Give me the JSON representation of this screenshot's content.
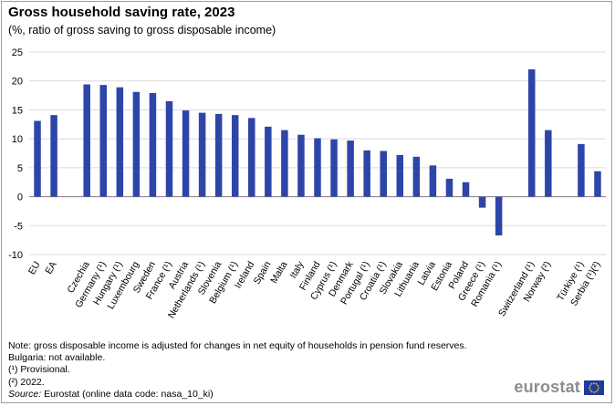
{
  "header": {
    "title": "Gross household saving rate, 2023",
    "subtitle": "(%, ratio of gross saving to gross disposable income)"
  },
  "chart_data": {
    "type": "bar",
    "title": "Gross household saving rate, 2023",
    "subtitle": "(%, ratio of gross saving to gross disposable income)",
    "xlabel": "",
    "ylabel": "",
    "ylim": [
      -10,
      25
    ],
    "yticks": [
      -10,
      -5,
      0,
      5,
      10,
      15,
      20,
      25
    ],
    "grid": true,
    "color": "#2e45a8",
    "categories": [
      "EU",
      "EA",
      "Czechia",
      "Germany (¹)",
      "Hungary (¹)",
      "Luxembourg",
      "Sweden",
      "France (¹)",
      "Austria",
      "Netherlands (¹)",
      "Slovenia",
      "Belgium (¹)",
      "Ireland",
      "Spain",
      "Malta",
      "Italy",
      "Finland",
      "Cyprus (¹)",
      "Denmark",
      "Portugal (¹)",
      "Croatia (¹)",
      "Slovakia",
      "Lithuania",
      "Latvia",
      "Estonia",
      "Poland",
      "Greece (¹)",
      "Romania (¹)",
      "Switzerland (¹)",
      "Norway (²)",
      "Türkiye (¹)",
      "Serbia (¹)(²)"
    ],
    "values": [
      13.1,
      14.1,
      19.4,
      19.3,
      18.9,
      18.1,
      17.9,
      16.5,
      14.9,
      14.5,
      14.3,
      14.1,
      13.6,
      12.1,
      11.5,
      10.7,
      10.1,
      9.9,
      9.7,
      8.0,
      7.9,
      7.2,
      6.9,
      5.4,
      3.1,
      2.5,
      -1.9,
      -6.7,
      22.0,
      11.5,
      9.1,
      4.4
    ]
  },
  "notes": {
    "line1": "Note: gross disposable income is adjusted for changes in net equity of households in pension fund reserves.",
    "line2": "Bulgaria: not available.",
    "line3": "(¹) Provisional.",
    "line4": "(²) 2022.",
    "source_label": "Source:",
    "source_text": " Eurostat (online data code: nasa_10_ki)"
  },
  "logo": {
    "text": "eurostat"
  }
}
